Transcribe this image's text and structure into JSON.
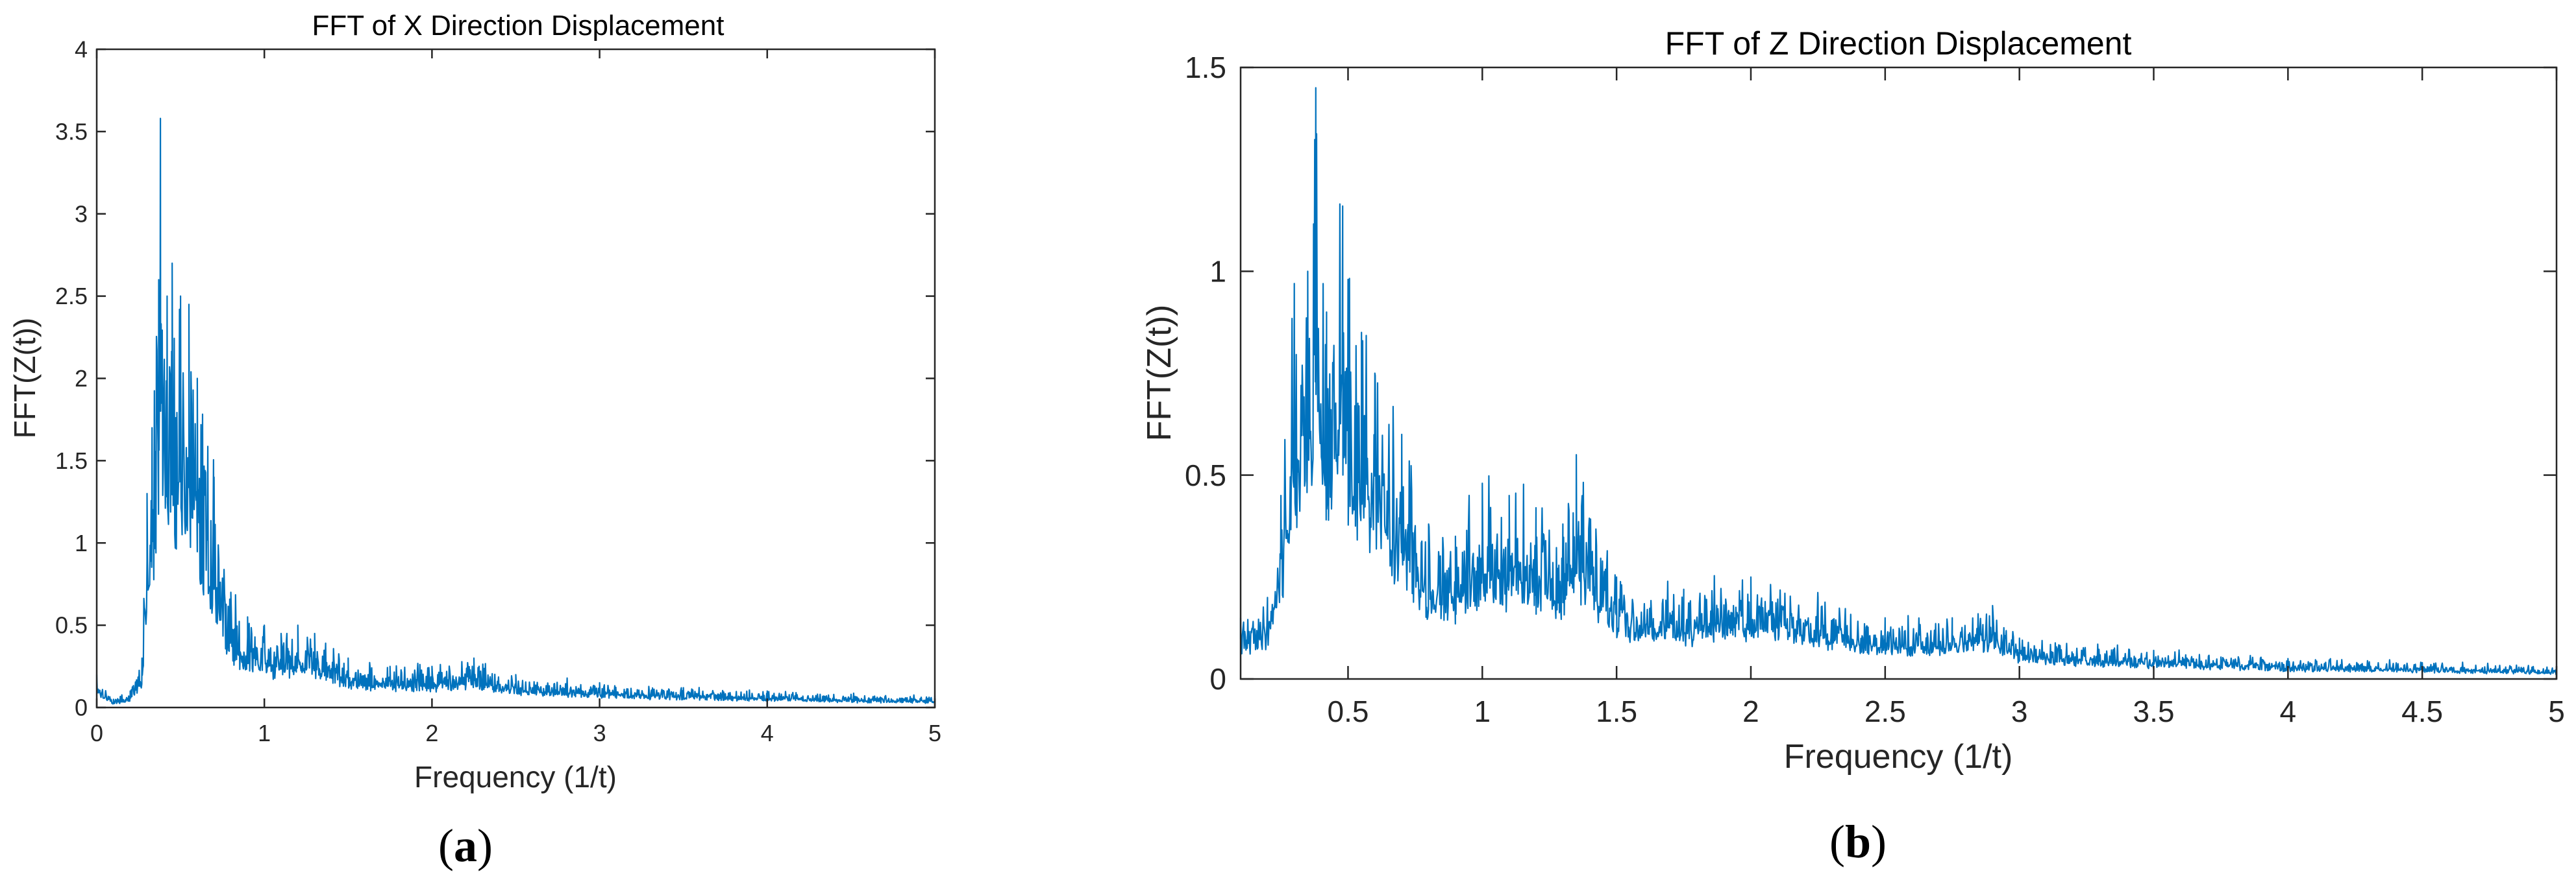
{
  "chart_data": [
    {
      "panel": "a",
      "type": "line",
      "title": "FFT of X Direction Displacement",
      "xlabel": "Frequency (1/t)",
      "ylabel": "FFT(Z(t))",
      "xlim": [
        0,
        5
      ],
      "ylim": [
        0,
        4
      ],
      "xticks": [
        0,
        1,
        2,
        3,
        4,
        5
      ],
      "xtick_labels": [
        "0",
        "1",
        "2",
        "3",
        "4",
        "5"
      ],
      "yticks": [
        0,
        0.5,
        1,
        1.5,
        2,
        2.5,
        3,
        3.5,
        4
      ],
      "ytick_labels": [
        "0",
        "0.5",
        "1",
        "1.5",
        "2",
        "2.5",
        "3",
        "3.5",
        "4"
      ],
      "grid": false,
      "line_color": "#0072BD",
      "series": [
        {
          "x": [
            0,
            0.1,
            0.2,
            0.27,
            0.3,
            0.33,
            0.37,
            0.38,
            0.42,
            0.45,
            0.5,
            0.55,
            0.6,
            0.7,
            0.8,
            0.9,
            1.0,
            1.1,
            1.2,
            1.3,
            1.5,
            1.75,
            2.0,
            2.25,
            2.5,
            3.0,
            3.5,
            4.0,
            4.5,
            5.0
          ],
          "y": [
            0.2,
            0.05,
            0.1,
            0.3,
            1.3,
            1.7,
            2.6,
            3.58,
            2.5,
            2.7,
            2.5,
            2.45,
            2.0,
            1.4,
            0.7,
            0.55,
            0.5,
            0.45,
            0.5,
            0.45,
            0.3,
            0.25,
            0.25,
            0.3,
            0.2,
            0.15,
            0.12,
            0.1,
            0.08,
            0.07
          ]
        }
      ]
    },
    {
      "panel": "b",
      "type": "line",
      "title": "FFT of Z Direction Displacement",
      "xlabel": "Frequency (1/t)",
      "ylabel": "FFT(Z(t))",
      "xlim": [
        0.1,
        5
      ],
      "ylim": [
        0,
        1.5
      ],
      "xticks": [
        0.5,
        1,
        1.5,
        2,
        2.5,
        3,
        3.5,
        4,
        4.5,
        5
      ],
      "xtick_labels": [
        "0.5",
        "1",
        "1.5",
        "2",
        "2.5",
        "3",
        "3.5",
        "4",
        "4.5",
        "5"
      ],
      "yticks": [
        0,
        0.5,
        1,
        1.5
      ],
      "ytick_labels": [
        "0",
        "0.5",
        "1",
        "1.5"
      ],
      "grid": false,
      "line_color": "#0072BD",
      "series": [
        {
          "x": [
            0.1,
            0.2,
            0.25,
            0.3,
            0.35,
            0.38,
            0.42,
            0.48,
            0.5,
            0.55,
            0.6,
            0.7,
            0.8,
            0.9,
            1.0,
            1.1,
            1.2,
            1.3,
            1.35,
            1.5,
            1.75,
            2.0,
            2.25,
            2.5,
            2.75,
            2.9,
            3.0,
            3.5,
            4.0,
            4.5,
            5.0
          ],
          "y": [
            0.15,
            0.2,
            0.45,
            0.97,
            1.0,
            1.45,
            0.9,
            1.16,
            0.98,
            0.85,
            0.75,
            0.6,
            0.38,
            0.35,
            0.48,
            0.45,
            0.42,
            0.38,
            0.55,
            0.25,
            0.22,
            0.25,
            0.2,
            0.15,
            0.15,
            0.18,
            0.1,
            0.07,
            0.05,
            0.04,
            0.03
          ]
        }
      ]
    }
  ],
  "panel_labels": {
    "a_open": "(",
    "a_letter": "a",
    "a_close": ")",
    "b_open": "(",
    "b_letter": "b",
    "b_close": ")"
  }
}
